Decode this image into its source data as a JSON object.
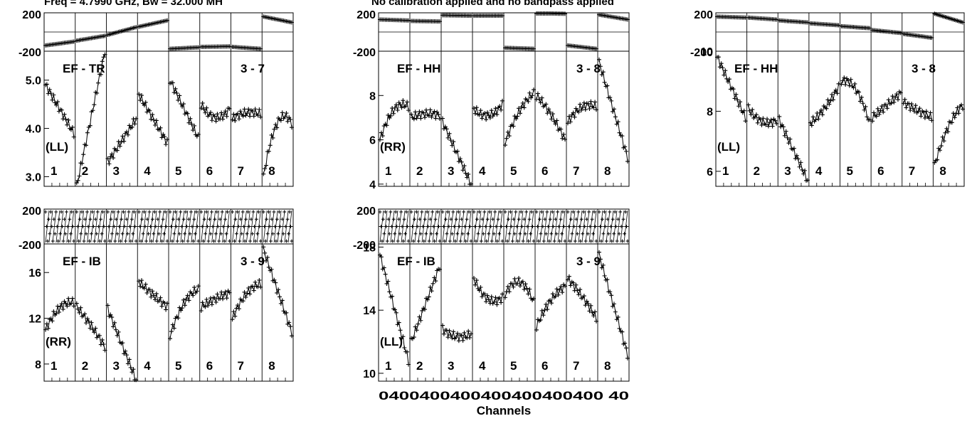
{
  "header": {
    "freq_text": "Freq = 4.7990 GHz, Bw = 32.000 MH",
    "calib_text": "No calibration applied and no bandpass applied"
  },
  "x_axis": {
    "label": "Channels",
    "tick_text": "0400400400400400400400 40"
  },
  "chart_data": [
    {
      "type": "line",
      "title": "EF - TR",
      "baseline": "3 - 7",
      "polarization": "(LL)",
      "subbands": [
        "1",
        "2",
        "3",
        "4",
        "5",
        "6",
        "7",
        "8"
      ],
      "phase_ylim": [
        -200,
        200
      ],
      "phase_ticks": [
        "200",
        "-200"
      ],
      "amp_ylim": [
        2.8,
        5.6
      ],
      "amp_ticks": [
        {
          "v": 5.0,
          "label": "5.0"
        },
        {
          "v": 4.0,
          "label": "4.0"
        },
        {
          "v": 3.0,
          "label": "3.0"
        }
      ],
      "phase_series": [
        {
          "mode": "lin",
          "a": -140,
          "b": -100
        },
        {
          "mode": "lin",
          "a": -90,
          "b": -40
        },
        {
          "mode": "lin",
          "a": -30,
          "b": 50
        },
        {
          "mode": "lin",
          "a": 55,
          "b": 120
        },
        {
          "mode": "lin",
          "a": -175,
          "b": -160
        },
        {
          "mode": "lin",
          "a": -155,
          "b": -150
        },
        {
          "mode": "lin",
          "a": -155,
          "b": -175
        },
        {
          "mode": "lin",
          "a": 160,
          "b": 100
        }
      ],
      "amp_series": [
        {
          "mode": "tilt",
          "a": 4.9,
          "b": 3.9,
          "c": 0,
          "d": 0
        },
        {
          "mode": "tilt",
          "a": 2.8,
          "b": 5.6,
          "c": 0,
          "d": 0
        },
        {
          "mode": "tilt",
          "a": 3.3,
          "b": 4.2,
          "c": 0,
          "d": 0
        },
        {
          "mode": "tilt",
          "a": 4.7,
          "b": 3.7,
          "c": 0,
          "d": 0
        },
        {
          "mode": "tilt",
          "a": 5.0,
          "b": 3.8,
          "c": 0,
          "d": 0
        },
        {
          "mode": "u",
          "a": 4.5,
          "b": 4.0,
          "c": 4.4,
          "d": 0
        },
        {
          "mode": "u",
          "a": 4.2,
          "b": 4.4,
          "c": 4.3,
          "d": 0
        },
        {
          "mode": "u",
          "a": 3.0,
          "b": 4.7,
          "c": 4.1,
          "d": 0
        }
      ]
    },
    {
      "type": "line",
      "title": "EF - HH",
      "baseline": "3 - 8",
      "polarization": "(RR)",
      "subbands": [
        "1",
        "2",
        "3",
        "4",
        "5",
        "6",
        "7",
        "8"
      ],
      "phase_ylim": [
        -200,
        200
      ],
      "phase_ticks": [
        "200",
        "-200"
      ],
      "amp_ylim": [
        3.9,
        10.0
      ],
      "amp_ticks": [
        {
          "v": 8,
          "label": "8"
        },
        {
          "v": 6,
          "label": "6"
        },
        {
          "v": 4,
          "label": "4"
        }
      ],
      "phase_series": [
        {
          "mode": "lin",
          "a": 130,
          "b": 120
        },
        {
          "mode": "lin",
          "a": 115,
          "b": 110
        },
        {
          "mode": "lin",
          "a": 175,
          "b": 170
        },
        {
          "mode": "lin",
          "a": 170,
          "b": 170
        },
        {
          "mode": "lin",
          "a": -165,
          "b": -175
        },
        {
          "mode": "lin",
          "a": 195,
          "b": 190
        },
        {
          "mode": "lin",
          "a": -140,
          "b": -175
        },
        {
          "mode": "lin",
          "a": 180,
          "b": 130
        }
      ],
      "amp_series": [
        {
          "mode": "u",
          "a": 6.0,
          "b": 8.0,
          "c": 7.5,
          "d": 0
        },
        {
          "mode": "u",
          "a": 7.0,
          "b": 7.3,
          "c": 7.1,
          "d": 0
        },
        {
          "mode": "tilt",
          "a": 6.8,
          "b": 4.0,
          "c": 0,
          "d": 0
        },
        {
          "mode": "u",
          "a": 7.4,
          "b": 6.7,
          "c": 7.6,
          "d": 0
        },
        {
          "mode": "u",
          "a": 5.9,
          "b": 7.6,
          "c": 8.1,
          "d": 0
        },
        {
          "mode": "u",
          "a": 8.0,
          "b": 7.3,
          "c": 6.0,
          "d": 0
        },
        {
          "mode": "u",
          "a": 6.8,
          "b": 7.8,
          "c": 7.5,
          "d": 0
        },
        {
          "mode": "tilt",
          "a": 9.5,
          "b": 5.2,
          "c": 0,
          "d": 0
        }
      ]
    },
    {
      "type": "line",
      "title": "EF - HH",
      "baseline": "3 - 8",
      "polarization": "(LL)",
      "subbands": [
        "1",
        "2",
        "3",
        "4",
        "5",
        "6",
        "7",
        "8"
      ],
      "phase_ylim": [
        -200,
        200
      ],
      "phase_ticks": [
        "200",
        "-200"
      ],
      "amp_ylim": [
        5.5,
        10.0
      ],
      "amp_ticks": [
        {
          "v": 10,
          "label": "10"
        },
        {
          "v": 8,
          "label": "8"
        },
        {
          "v": 6,
          "label": "6"
        }
      ],
      "phase_series": [
        {
          "mode": "lin",
          "a": 160,
          "b": 150
        },
        {
          "mode": "lin",
          "a": 150,
          "b": 130
        },
        {
          "mode": "lin",
          "a": 120,
          "b": 100
        },
        {
          "mode": "lin",
          "a": 90,
          "b": 70
        },
        {
          "mode": "lin",
          "a": 60,
          "b": 40
        },
        {
          "mode": "lin",
          "a": 20,
          "b": -10
        },
        {
          "mode": "lin",
          "a": -20,
          "b": -60
        },
        {
          "mode": "lin",
          "a": 190,
          "b": 100
        }
      ],
      "amp_series": [
        {
          "mode": "tilt",
          "a": 9.8,
          "b": 7.8,
          "c": 0,
          "d": 0
        },
        {
          "mode": "u",
          "a": 8.1,
          "b": 7.4,
          "c": 7.7,
          "d": 0
        },
        {
          "mode": "tilt",
          "a": 7.7,
          "b": 5.7,
          "c": 0,
          "d": 0
        },
        {
          "mode": "u",
          "a": 7.6,
          "b": 8.0,
          "c": 8.8,
          "d": 0
        },
        {
          "mode": "u",
          "a": 9.0,
          "b": 9.2,
          "c": 7.6,
          "d": 0
        },
        {
          "mode": "u",
          "a": 7.8,
          "b": 8.2,
          "c": 8.6,
          "d": 0
        },
        {
          "mode": "u",
          "a": 8.3,
          "b": 8.0,
          "c": 7.8,
          "d": 0
        },
        {
          "mode": "u",
          "a": 6.2,
          "b": 7.8,
          "c": 8.2,
          "d": 0
        }
      ]
    },
    {
      "type": "line",
      "title": "EF - IB",
      "baseline": "3 - 9",
      "polarization": "(RR)",
      "subbands": [
        "1",
        "2",
        "3",
        "4",
        "5",
        "6",
        "7",
        "8"
      ],
      "phase_ylim": [
        -200,
        200
      ],
      "phase_ticks": [
        "200",
        "-200"
      ],
      "amp_ylim": [
        6.5,
        18.5
      ],
      "amp_ticks": [
        {
          "v": 16,
          "label": "16"
        },
        {
          "v": 12,
          "label": "12"
        },
        {
          "v": 8,
          "label": "8"
        }
      ],
      "phase_series": [
        {
          "mode": "wrap",
          "a": 0,
          "b": 0
        },
        {
          "mode": "wrap",
          "a": 0,
          "b": 0
        },
        {
          "mode": "wrap",
          "a": 0,
          "b": 0
        },
        {
          "mode": "wrap",
          "a": 0,
          "b": 0
        },
        {
          "mode": "wrap",
          "a": 0,
          "b": 0
        },
        {
          "mode": "wrap",
          "a": 0,
          "b": 0
        },
        {
          "mode": "wrap",
          "a": 0,
          "b": 0
        },
        {
          "mode": "wrap",
          "a": 0,
          "b": 0
        }
      ],
      "amp_series": [
        {
          "mode": "u",
          "a": 11.0,
          "b": 13.6,
          "c": 13.4,
          "d": 0
        },
        {
          "mode": "u",
          "a": 13.0,
          "b": 11.5,
          "c": 9.5,
          "d": 0
        },
        {
          "mode": "tilt",
          "a": 12.8,
          "b": 6.6,
          "c": 0,
          "d": 0
        },
        {
          "mode": "u",
          "a": 15.2,
          "b": 14.0,
          "c": 13.0,
          "d": 0
        },
        {
          "mode": "u",
          "a": 10.5,
          "b": 14.2,
          "c": 14.5,
          "d": 0
        },
        {
          "mode": "u",
          "a": 13.0,
          "b": 13.8,
          "c": 14.2,
          "d": 0
        },
        {
          "mode": "u",
          "a": 12.0,
          "b": 14.8,
          "c": 15.0,
          "d": 0
        },
        {
          "mode": "tilt",
          "a": 18.0,
          "b": 10.8,
          "c": 0,
          "d": 0
        }
      ]
    },
    {
      "type": "line",
      "title": "EF - IB",
      "baseline": "3 - 9",
      "polarization": "(LL)",
      "subbands": [
        "1",
        "2",
        "3",
        "4",
        "5",
        "6",
        "7",
        "8"
      ],
      "phase_ylim": [
        -200,
        200
      ],
      "phase_ticks": [
        "200",
        "-200"
      ],
      "amp_ylim": [
        9.5,
        18.2
      ],
      "amp_ticks": [
        {
          "v": 18,
          "label": "18"
        },
        {
          "v": 14,
          "label": "14"
        },
        {
          "v": 10,
          "label": "10"
        }
      ],
      "phase_series": [
        {
          "mode": "wrap",
          "a": 0,
          "b": 0
        },
        {
          "mode": "wrap",
          "a": 0,
          "b": 0
        },
        {
          "mode": "wrap",
          "a": 0,
          "b": 0
        },
        {
          "mode": "wrap",
          "a": 0,
          "b": 0
        },
        {
          "mode": "wrap",
          "a": 0,
          "b": 0
        },
        {
          "mode": "wrap",
          "a": 0,
          "b": 0
        },
        {
          "mode": "wrap",
          "a": 0,
          "b": 0
        },
        {
          "mode": "wrap",
          "a": 0,
          "b": 0
        }
      ],
      "amp_series": [
        {
          "mode": "tilt",
          "a": 17.5,
          "b": 10.8,
          "c": 0,
          "d": 0
        },
        {
          "mode": "tilt",
          "a": 12.0,
          "b": 16.8,
          "c": 0,
          "d": 0
        },
        {
          "mode": "u",
          "a": 12.8,
          "b": 12.0,
          "c": 12.5,
          "d": 0
        },
        {
          "mode": "u",
          "a": 16.0,
          "b": 14.0,
          "c": 14.8,
          "d": 0
        },
        {
          "mode": "u",
          "a": 15.0,
          "b": 16.8,
          "c": 14.5,
          "d": 0
        },
        {
          "mode": "u",
          "a": 13.0,
          "b": 15.0,
          "c": 15.5,
          "d": 0
        },
        {
          "mode": "u",
          "a": 16.0,
          "b": 15.0,
          "c": 13.5,
          "d": 0
        },
        {
          "mode": "tilt",
          "a": 17.5,
          "b": 11.2,
          "c": 0,
          "d": 0
        }
      ]
    }
  ]
}
